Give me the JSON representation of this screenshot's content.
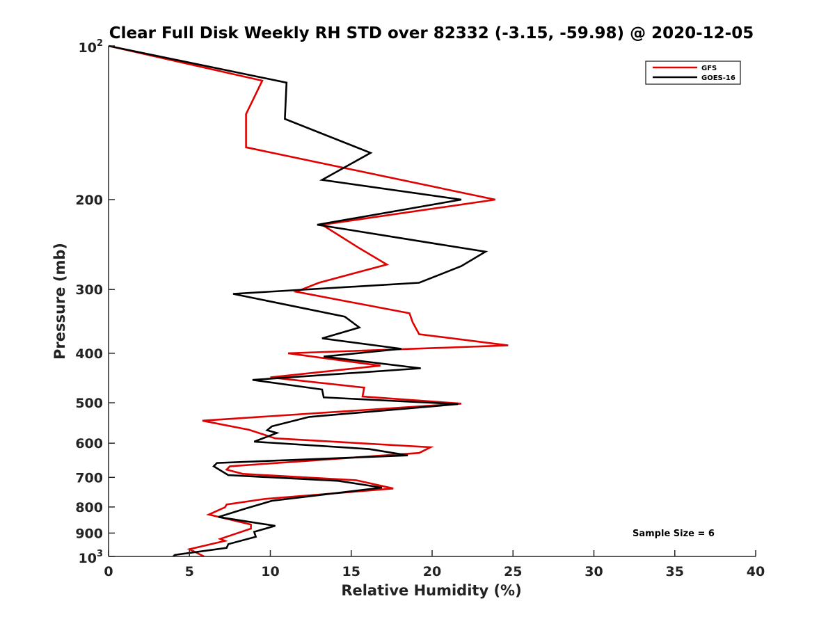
{
  "chart_data": {
    "type": "line",
    "title": "Clear Full Disk Weekly RH STD over 82332 (-3.15, -59.98) @ 2020-12-05",
    "xlabel": "Relative Humidity (%)",
    "ylabel": "Pressure (mb)",
    "xlim": [
      0,
      40
    ],
    "ylim": [
      100,
      1000
    ],
    "y_scale": "log",
    "y_reversed": true,
    "grid": false,
    "legend_position": "top-right",
    "x_ticks": [
      "0",
      "5",
      "10",
      "15",
      "20",
      "25",
      "30",
      "35",
      "40"
    ],
    "y_ticks": [
      {
        "value": 100,
        "base": "10",
        "exp": "2"
      },
      {
        "value": 200,
        "label": "200"
      },
      {
        "value": 300,
        "label": "300"
      },
      {
        "value": 400,
        "label": "400"
      },
      {
        "value": 500,
        "label": "500"
      },
      {
        "value": 600,
        "label": "600"
      },
      {
        "value": 700,
        "label": "700"
      },
      {
        "value": 800,
        "label": "800"
      },
      {
        "value": 900,
        "label": "900"
      },
      {
        "value": 1000,
        "base": "10",
        "exp": "3"
      }
    ],
    "annotation": "Sample Size = 6",
    "series": [
      {
        "name": "GFS",
        "color": "#e00000",
        "points": [
          [
            0.0,
            100
          ],
          [
            9.5,
            117
          ],
          [
            8.5,
            136
          ],
          [
            8.5,
            158
          ],
          [
            23.9,
            200
          ],
          [
            13.2,
            224
          ],
          [
            15.5,
            249
          ],
          [
            17.2,
            268
          ],
          [
            13.0,
            291
          ],
          [
            11.6,
            303
          ],
          [
            18.6,
            334
          ],
          [
            18.8,
            348
          ],
          [
            19.2,
            367
          ],
          [
            24.7,
            386
          ],
          [
            11.1,
            400
          ],
          [
            16.8,
            423
          ],
          [
            10.0,
            446
          ],
          [
            15.8,
            467
          ],
          [
            15.7,
            486
          ],
          [
            21.8,
            502
          ],
          [
            5.8,
            542
          ],
          [
            8.7,
            565
          ],
          [
            10.3,
            587
          ],
          [
            19.9,
            611
          ],
          [
            19.2,
            627
          ],
          [
            7.5,
            666
          ],
          [
            7.3,
            676
          ],
          [
            8.3,
            689
          ],
          [
            15.3,
            709
          ],
          [
            17.6,
            736
          ],
          [
            9.6,
            772
          ],
          [
            7.3,
            791
          ],
          [
            7.2,
            801
          ],
          [
            6.2,
            828
          ],
          [
            8.8,
            866
          ],
          [
            8.8,
            882
          ],
          [
            6.9,
            924
          ],
          [
            7.2,
            932
          ],
          [
            5.0,
            968
          ],
          [
            5.9,
            1000
          ]
        ]
      },
      {
        "name": "GOES-16",
        "color": "#000000",
        "points": [
          [
            0.0,
            100
          ],
          [
            11.0,
            118
          ],
          [
            10.9,
            139
          ],
          [
            16.2,
            162
          ],
          [
            13.2,
            183
          ],
          [
            21.8,
            200
          ],
          [
            12.9,
            224
          ],
          [
            23.3,
            253
          ],
          [
            21.8,
            270
          ],
          [
            19.2,
            291
          ],
          [
            7.7,
            306
          ],
          [
            14.6,
            339
          ],
          [
            15.5,
            356
          ],
          [
            13.2,
            374
          ],
          [
            18.1,
            392
          ],
          [
            13.3,
            406
          ],
          [
            19.3,
            428
          ],
          [
            8.9,
            451
          ],
          [
            13.2,
            471
          ],
          [
            13.3,
            488
          ],
          [
            21.6,
            503
          ],
          [
            12.4,
            533
          ],
          [
            10.1,
            556
          ],
          [
            9.8,
            566
          ],
          [
            10.4,
            573
          ],
          [
            9.0,
            596
          ],
          [
            16.1,
            616
          ],
          [
            18.5,
            634
          ],
          [
            6.7,
            656
          ],
          [
            6.5,
            666
          ],
          [
            7.4,
            693
          ],
          [
            14.2,
            711
          ],
          [
            16.9,
            733
          ],
          [
            10.1,
            778
          ],
          [
            8.4,
            807
          ],
          [
            6.8,
            837
          ],
          [
            10.3,
            871
          ],
          [
            9.0,
            895
          ],
          [
            9.1,
            915
          ],
          [
            7.4,
            946
          ],
          [
            7.3,
            962
          ],
          [
            4.1,
            993
          ],
          [
            4.0,
            1000
          ]
        ]
      }
    ]
  }
}
